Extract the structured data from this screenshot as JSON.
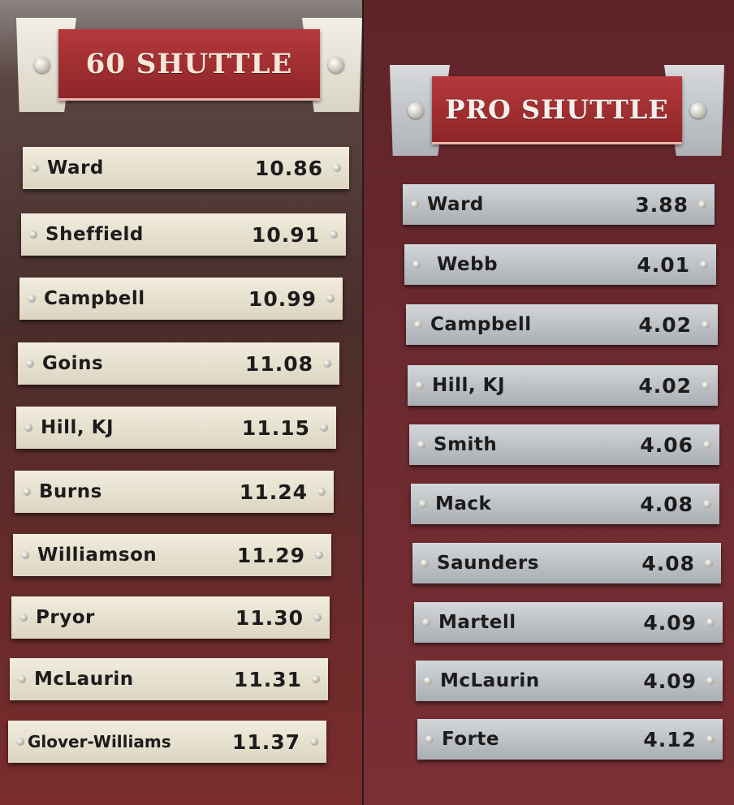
{
  "boards": [
    {
      "title": "60 SHUTTLE",
      "entries": [
        {
          "name": "Ward",
          "time": "10.86"
        },
        {
          "name": "Sheffield",
          "time": "10.91"
        },
        {
          "name": "Campbell",
          "time": "10.99"
        },
        {
          "name": "Goins",
          "time": "11.08"
        },
        {
          "name": "Hill, KJ",
          "time": "11.15"
        },
        {
          "name": "Burns",
          "time": "11.24"
        },
        {
          "name": "Williamson",
          "time": "11.29"
        },
        {
          "name": "Pryor",
          "time": "11.30"
        },
        {
          "name": "McLaurin",
          "time": "11.31"
        },
        {
          "name": "Glover-Williams",
          "time": "11.37"
        }
      ]
    },
    {
      "title": "PRO SHUTTLE",
      "entries": [
        {
          "name": "Ward",
          "time": "3.88"
        },
        {
          "name": "Webb",
          "time": "4.01"
        },
        {
          "name": "Campbell",
          "time": "4.02"
        },
        {
          "name": "Hill, KJ",
          "time": "4.02"
        },
        {
          "name": "Smith",
          "time": "4.06"
        },
        {
          "name": "Mack",
          "time": "4.08"
        },
        {
          "name": "Saunders",
          "time": "4.08"
        },
        {
          "name": "Martell",
          "time": "4.09"
        },
        {
          "name": "McLaurin",
          "time": "4.09"
        },
        {
          "name": "Forte",
          "time": "4.12"
        }
      ]
    }
  ],
  "colors": {
    "banner_red": "#a83034",
    "left_plate": "#ece6d4",
    "right_plate": "#c2c6ca",
    "right_wall": "#6a2a2f"
  }
}
